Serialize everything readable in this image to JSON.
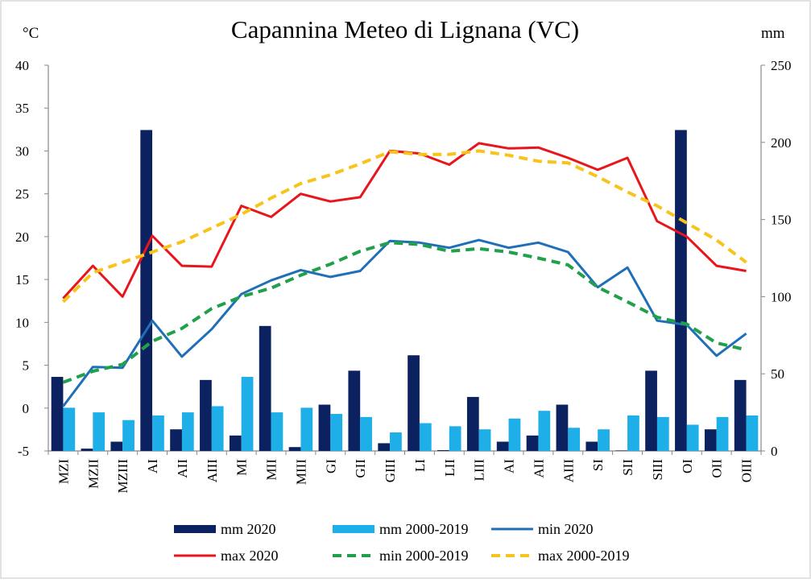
{
  "chart_data": {
    "type": "bar+line",
    "title": "Capannina Meteo di Lignana (VC)",
    "ylabel_left": "°C",
    "ylabel_right": "mm",
    "ylim_left": [
      -5,
      40
    ],
    "yticks_left": [
      -5,
      0,
      5,
      10,
      15,
      20,
      25,
      30,
      35,
      40
    ],
    "ylim_right": [
      0,
      250
    ],
    "yticks_right": [
      0,
      50,
      100,
      150,
      200,
      250
    ],
    "categories": [
      "MZI",
      "MZII",
      "MZIII",
      "AI",
      "AII",
      "AIII",
      "MI",
      "MII",
      "MIII",
      "GI",
      "GII",
      "GIII",
      "LI",
      "LII",
      "LIII",
      "AI",
      "AII",
      "AIII",
      "SI",
      "SII",
      "SIII",
      "OI",
      "OII",
      "OIII"
    ],
    "bar_series": [
      {
        "name": "mm 2020",
        "color": "#0b2160",
        "axis": "right",
        "values": [
          48,
          1.5,
          6,
          208,
          14,
          46,
          10,
          81,
          2.5,
          30,
          52,
          5,
          62,
          0.5,
          35,
          6,
          10,
          30,
          6,
          0.3,
          52,
          208,
          14,
          46
        ]
      },
      {
        "name": "mm 2000-2019",
        "color": "#1eaee8",
        "axis": "right",
        "values": [
          28,
          25,
          20,
          23,
          25,
          29,
          48,
          25,
          28,
          24,
          22,
          12,
          18,
          16,
          14,
          21,
          26,
          15,
          14,
          23,
          22,
          17,
          22,
          23
        ]
      }
    ],
    "line_series": [
      {
        "name": "min 2020",
        "color": "#1f6fb8",
        "style": "solid",
        "values": [
          0.2,
          4.8,
          4.7,
          10.2,
          6.0,
          9.2,
          13.3,
          14.9,
          16.1,
          15.3,
          16.0,
          19.5,
          19.3,
          18.7,
          19.6,
          18.7,
          19.3,
          18.2,
          14.1,
          16.4,
          10.2,
          9.7,
          6.1,
          8.7
        ]
      },
      {
        "name": "max 2020",
        "color": "#e8151c",
        "style": "solid",
        "values": [
          12.8,
          16.6,
          13.0,
          20.1,
          16.6,
          16.5,
          23.6,
          22.3,
          25.0,
          24.1,
          24.6,
          30.0,
          29.7,
          28.4,
          30.9,
          30.3,
          30.4,
          29.2,
          27.8,
          29.2,
          21.8,
          20.0,
          16.6,
          16.0
        ]
      },
      {
        "name": "min 2000-2019",
        "color": "#20a04a",
        "style": "dashed",
        "values": [
          3.0,
          4.3,
          5.1,
          7.8,
          9.3,
          11.6,
          13.0,
          14.0,
          15.5,
          16.8,
          18.3,
          19.3,
          19.1,
          18.3,
          18.6,
          18.2,
          17.5,
          16.7,
          14.1,
          12.4,
          10.6,
          9.8,
          7.6,
          6.8
        ]
      },
      {
        "name": "max 2000-2019",
        "color": "#f8c31a",
        "style": "dashed",
        "values": [
          12.4,
          15.8,
          17.0,
          18.2,
          19.4,
          21.0,
          22.6,
          24.5,
          26.2,
          27.2,
          28.5,
          29.9,
          29.6,
          29.6,
          30.0,
          29.5,
          28.8,
          28.6,
          27.0,
          25.2,
          23.6,
          21.6,
          19.6,
          17.0
        ]
      }
    ],
    "legend": {
      "position": "bottom",
      "items": [
        {
          "label": "mm 2020",
          "kind": "bar",
          "color": "#0b2160"
        },
        {
          "label": "mm 2000-2019",
          "kind": "bar",
          "color": "#1eaee8"
        },
        {
          "label": "min 2020",
          "kind": "line",
          "color": "#1f6fb8",
          "style": "solid"
        },
        {
          "label": "max 2020",
          "kind": "line",
          "color": "#e8151c",
          "style": "solid"
        },
        {
          "label": "min 2000-2019",
          "kind": "line",
          "color": "#20a04a",
          "style": "dashed"
        },
        {
          "label": "max 2000-2019",
          "kind": "line",
          "color": "#f8c31a",
          "style": "dashed"
        }
      ]
    },
    "grid": false
  }
}
